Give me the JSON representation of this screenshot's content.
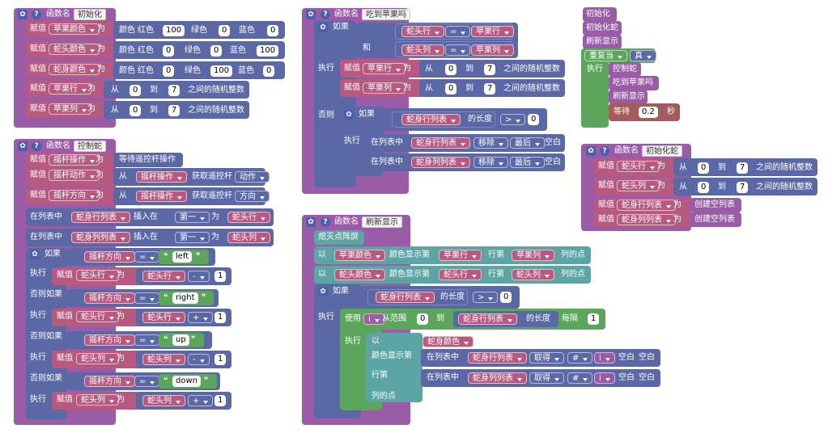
{
  "words": {
    "func": "函数名",
    "set": "赋值",
    "to": "为",
    "color": "颜色",
    "red": "红色",
    "green": "绿色",
    "blue": "蓝色",
    "from": "从",
    "until": "到",
    "rand": "之间的随机整数",
    "if": "如果",
    "do": "执行",
    "else": "否则",
    "elseif": "否则如果",
    "and": "和",
    "in_list": "在列表中",
    "insert_at": "插入在",
    "first": "第一",
    "last": "最后",
    "remove": "移除",
    "empty": "空白",
    "length": "的长度",
    "wait_joy": "等待遥控杆操作",
    "get_joy": "获取遥控杆",
    "clear": "熄灭点阵屏",
    "with": "以",
    "show_col": "颜色显示第",
    "row": "行第",
    "col_dot": "列的点",
    "use": "使用",
    "range_from": "从范围",
    "every": "每隔",
    "get": "取得",
    "row_label": "行第",
    "col_dot2": "列的点",
    "show_col2": "颜色显示第",
    "repeat": "重复当",
    "true": "真",
    "wait": "等待",
    "sec": "秒",
    "create_empty": "创建空列表"
  },
  "vars": {
    "apple_color": "苹果颜色",
    "head_color": "蛇头颜色",
    "body_color": "蛇身颜色",
    "apple_row": "苹果行",
    "apple_col": "苹果列",
    "head_row": "蛇头行",
    "head_col": "蛇头列",
    "joy_op": "摇杆操作",
    "joy_act": "摇杆动作",
    "joy_dir": "摇杆方向",
    "body_rows": "蛇身行列表",
    "body_cols": "蛇身列列表",
    "i": "i",
    "act_opt": "动作",
    "dir_opt": "方向"
  },
  "ops": {
    "eq": "=",
    "gt": ">",
    "minus": "-",
    "plus": "+",
    "hash": "#"
  },
  "strings": {
    "left": "left",
    "right": "right",
    "up": "up",
    "down": "down"
  },
  "funcs": {
    "init": "初始化",
    "eat": "吃到苹果吗",
    "control": "控制蛇",
    "refresh": "刷新显示",
    "init_snake": "初始化蛇"
  },
  "nums": {
    "r100": "100",
    "z": "0",
    "c100": "100",
    "one": "1",
    "seven": "7",
    "wait_val": "0.2"
  },
  "colors": {
    "procedure": "#9a5ca7",
    "variable": "#b85a80",
    "logic": "#5b68a6",
    "loop": "#5ca65c",
    "display": "#5ba5a5",
    "time": "#a55b5b"
  }
}
